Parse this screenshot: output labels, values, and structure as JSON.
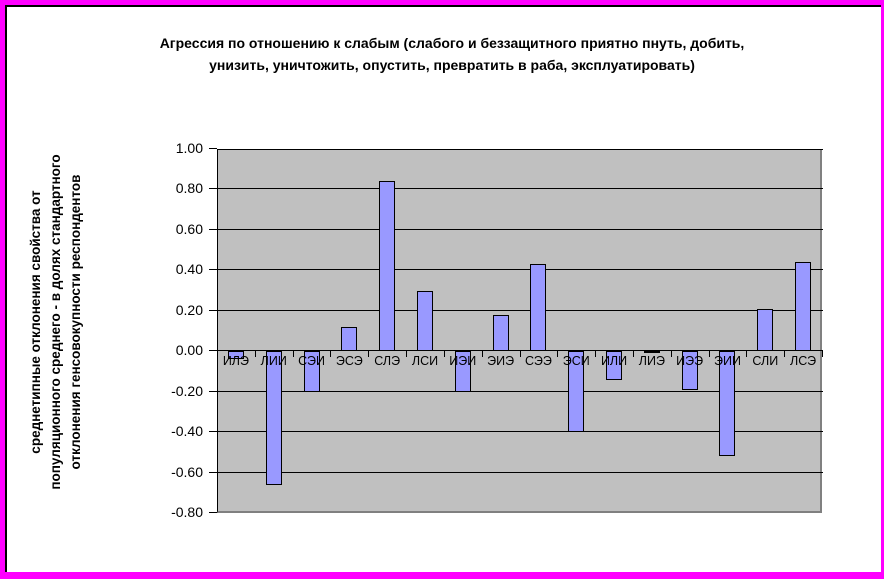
{
  "chart_data": {
    "type": "bar",
    "title": "Агрессия по отношению к слабым (слабого и беззащитного приятно пнуть, добить, унизить, уничтожить, опустить, превратить в раба, эксплуатировать)",
    "title_lines": [
      "Агрессия по отношению к слабым (слабого и беззащитного приятно пнуть, добить,",
      "унизить, уничтожить, опустить, превратить в раба, эксплуатировать)"
    ],
    "ylabel": "среднетипные отклонения свойства от популяционного среднего - в долях стандартного отклонения генсовокупности респондентов",
    "ylabel_lines": [
      "среднетипные отклонения свойства от",
      "популяционного среднего - в долях стандартного",
      "отклонения генсовокупности респондентов"
    ],
    "xlabel": "",
    "categories": [
      "ИЛЭ",
      "ЛИИ",
      "СЭИ",
      "ЭСЭ",
      "СЛЭ",
      "ЛСИ",
      "ИЭИ",
      "ЭИЭ",
      "СЭЭ",
      "ЭСИ",
      "ИЛИ",
      "ЛИЭ",
      "ИЭЭ",
      "ЭИИ",
      "СЛИ",
      "ЛСЭ"
    ],
    "values": [
      -0.04,
      -0.66,
      -0.2,
      0.12,
      0.84,
      0.3,
      -0.2,
      0.18,
      0.43,
      -0.4,
      -0.14,
      -0.01,
      -0.19,
      -0.52,
      0.21,
      0.44
    ],
    "ylim": [
      -0.8,
      1.0
    ],
    "ytick_step": 0.2,
    "ytick_labels": [
      "1.00",
      "0.80",
      "0.60",
      "0.40",
      "0.20",
      "0.00",
      "-0.20",
      "-0.40",
      "-0.60",
      "-0.80"
    ],
    "grid": true,
    "legend": false,
    "colors": {
      "bar_fill": "#9999FF",
      "bar_border": "#000000",
      "plot_bg": "#C0C0C0",
      "plot_shadow": "#808080",
      "frame_border": "#FF00FF",
      "chart_bg": "#FFFFFF",
      "text": "#000000"
    }
  }
}
